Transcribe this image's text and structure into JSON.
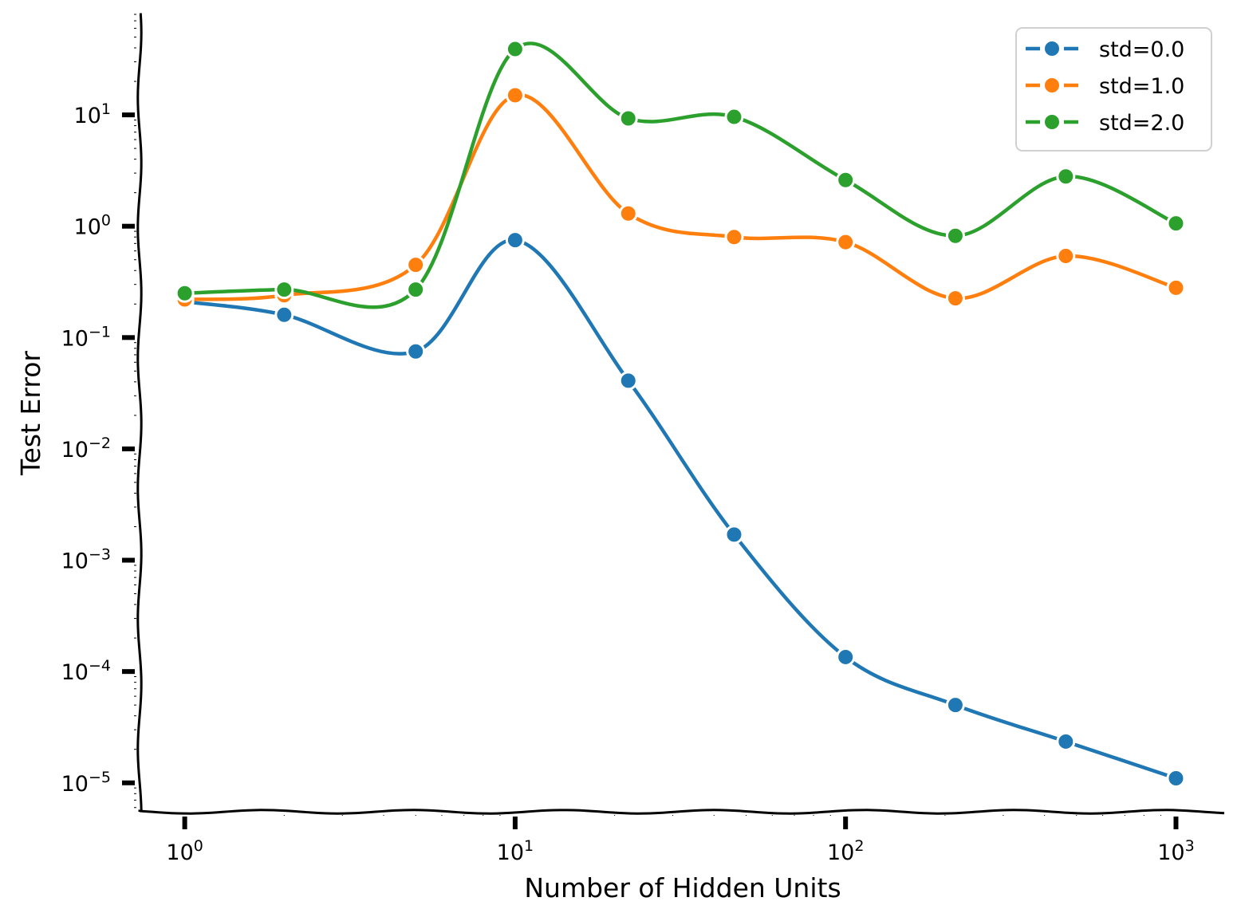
{
  "chart_data": {
    "type": "line",
    "title": "",
    "xlabel": "Number of Hidden Units",
    "ylabel": "Test Error",
    "x_scale": "log",
    "y_scale": "log",
    "xlim": [
      0.73,
      1400
    ],
    "ylim": [
      5.5e-06,
      80
    ],
    "x_ticks": [
      {
        "value": 1,
        "base": "10",
        "exp": "0"
      },
      {
        "value": 10,
        "base": "10",
        "exp": "1"
      },
      {
        "value": 100,
        "base": "10",
        "exp": "2"
      },
      {
        "value": 1000,
        "base": "10",
        "exp": "3"
      }
    ],
    "y_ticks": [
      {
        "value": 1e-05,
        "base": "10",
        "exp": "−5"
      },
      {
        "value": 0.0001,
        "base": "10",
        "exp": "−4"
      },
      {
        "value": 0.001,
        "base": "10",
        "exp": "−3"
      },
      {
        "value": 0.01,
        "base": "10",
        "exp": "−2"
      },
      {
        "value": 0.1,
        "base": "10",
        "exp": "−1"
      },
      {
        "value": 1,
        "base": "10",
        "exp": "0"
      },
      {
        "value": 10,
        "base": "10",
        "exp": "1"
      }
    ],
    "x": [
      1,
      2,
      5,
      10,
      22,
      46,
      100,
      215,
      464,
      1000
    ],
    "series": [
      {
        "name": "std=0.0",
        "color": "#1f77b4",
        "values": [
          0.21,
          0.16,
          0.075,
          0.75,
          0.041,
          0.0017,
          0.000135,
          5e-05,
          2.35e-05,
          1.1e-05
        ]
      },
      {
        "name": "std=1.0",
        "color": "#ff7f0e",
        "values": [
          0.22,
          0.24,
          0.45,
          15,
          1.3,
          0.8,
          0.72,
          0.225,
          0.54,
          0.28
        ]
      },
      {
        "name": "std=2.0",
        "color": "#2ca02c",
        "values": [
          0.25,
          0.27,
          0.27,
          39,
          9.3,
          9.6,
          2.6,
          0.82,
          2.8,
          1.06
        ]
      }
    ],
    "grid": false,
    "legend_position": "top-right"
  }
}
